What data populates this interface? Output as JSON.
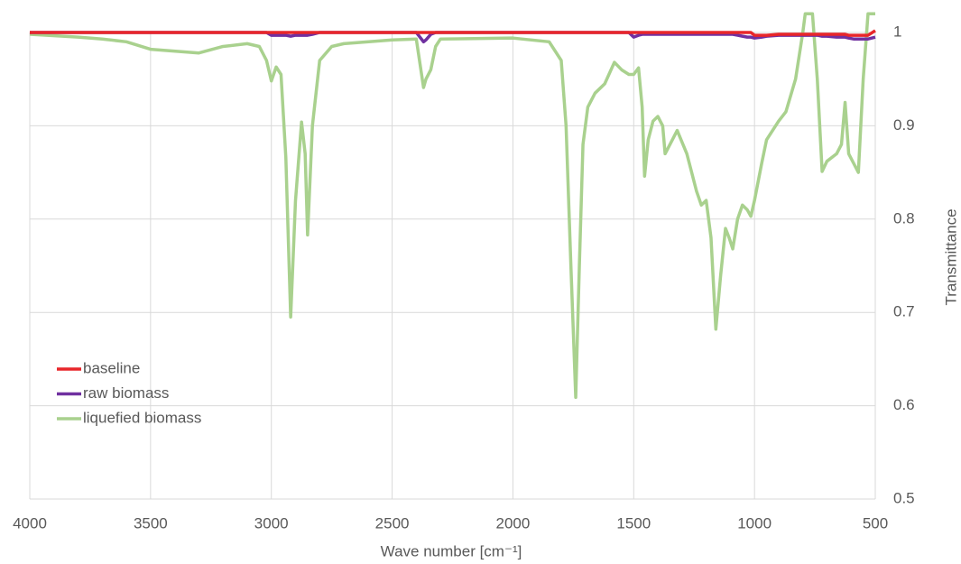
{
  "chart_data": {
    "type": "line",
    "x_label": "Wave number [cm⁻¹]",
    "y_label": "Transmittance",
    "x": [
      4000,
      3800,
      3700,
      3600,
      3500,
      3300,
      3200,
      3100,
      3050,
      3020,
      3000,
      2980,
      2960,
      2940,
      2920,
      2900,
      2875,
      2860,
      2850,
      2830,
      2800,
      2750,
      2700,
      2500,
      2400,
      2370,
      2360,
      2340,
      2320,
      2300,
      2000,
      1850,
      1800,
      1780,
      1760,
      1740,
      1725,
      1710,
      1690,
      1660,
      1620,
      1580,
      1550,
      1520,
      1500,
      1480,
      1465,
      1455,
      1440,
      1420,
      1400,
      1380,
      1370,
      1340,
      1320,
      1280,
      1240,
      1220,
      1200,
      1180,
      1160,
      1140,
      1120,
      1105,
      1090,
      1070,
      1050,
      1030,
      1015,
      1000,
      970,
      950,
      900,
      870,
      830,
      800,
      790,
      760,
      740,
      720,
      700,
      660,
      640,
      625,
      610,
      590,
      570,
      550,
      530,
      500
    ],
    "series": [
      {
        "name": "baseline",
        "color": "#e8262a",
        "values": [
          1,
          1,
          1,
          1,
          1,
          1,
          1,
          1,
          1,
          1,
          1,
          1,
          1,
          1,
          1,
          1,
          1,
          1,
          1,
          1,
          1,
          1,
          1,
          1,
          1,
          1,
          1,
          1,
          1,
          1,
          1,
          1,
          1,
          1,
          1,
          1,
          1,
          1,
          1,
          1,
          1,
          1,
          1,
          1,
          1,
          1,
          1,
          1,
          1,
          1,
          1,
          1,
          1,
          1,
          1,
          1,
          1,
          1,
          1,
          1,
          1,
          1,
          1,
          1,
          1,
          1,
          1,
          1,
          1,
          0.997,
          0.997,
          0.997,
          0.998,
          0.998,
          0.998,
          0.998,
          0.998,
          0.998,
          0.998,
          0.998,
          0.998,
          0.998,
          0.998,
          0.998,
          0.997,
          0.997,
          0.997,
          0.997,
          0.997,
          1.002
        ]
      },
      {
        "name": "raw biomass",
        "color": "#7030a0",
        "values": [
          1,
          1,
          1,
          1,
          1,
          1,
          1,
          1,
          1,
          1,
          0.997,
          0.997,
          0.997,
          0.997,
          0.996,
          0.997,
          0.997,
          0.997,
          0.997,
          0.998,
          1,
          1,
          1,
          1,
          1,
          0.99,
          0.992,
          0.998,
          1,
          1,
          1,
          1,
          1,
          1,
          1,
          1,
          1,
          1,
          1,
          1,
          1,
          1,
          1,
          1,
          0.995,
          0.997,
          0.998,
          0.998,
          0.998,
          0.998,
          0.998,
          0.998,
          0.998,
          0.998,
          0.998,
          0.998,
          0.998,
          0.998,
          0.998,
          0.998,
          0.998,
          0.998,
          0.998,
          0.998,
          0.998,
          0.997,
          0.996,
          0.995,
          0.995,
          0.994,
          0.995,
          0.996,
          0.997,
          0.997,
          0.997,
          0.997,
          0.997,
          0.997,
          0.997,
          0.996,
          0.996,
          0.995,
          0.995,
          0.995,
          0.994,
          0.993,
          0.993,
          0.993,
          0.993,
          0.995
        ]
      },
      {
        "name": "liquefied biomass",
        "color": "#a9d18e",
        "values": [
          0.998,
          0.995,
          0.993,
          0.99,
          0.982,
          0.978,
          0.985,
          0.988,
          0.985,
          0.97,
          0.948,
          0.963,
          0.955,
          0.866,
          0.695,
          0.82,
          0.904,
          0.87,
          0.783,
          0.9,
          0.97,
          0.985,
          0.988,
          0.992,
          0.993,
          0.941,
          0.95,
          0.96,
          0.985,
          0.993,
          0.994,
          0.99,
          0.97,
          0.9,
          0.75,
          0.609,
          0.75,
          0.88,
          0.92,
          0.935,
          0.945,
          0.968,
          0.96,
          0.955,
          0.955,
          0.962,
          0.92,
          0.846,
          0.885,
          0.905,
          0.91,
          0.9,
          0.87,
          0.885,
          0.895,
          0.87,
          0.83,
          0.815,
          0.82,
          0.78,
          0.682,
          0.74,
          0.79,
          0.78,
          0.768,
          0.8,
          0.815,
          0.81,
          0.803,
          0.82,
          0.86,
          0.885,
          0.905,
          0.915,
          0.95,
          1.0,
          1.02,
          1.02,
          0.95,
          0.851,
          0.862,
          0.87,
          0.88,
          0.925,
          0.87,
          0.86,
          0.85,
          0.95,
          1.02,
          1.02
        ]
      }
    ],
    "xlim": [
      4000,
      500
    ],
    "xticks": [
      4000,
      3500,
      3000,
      2500,
      2000,
      1500,
      1000,
      500
    ],
    "ylim": [
      0.5,
      1.02
    ],
    "yticks": [
      0.5,
      0.6,
      0.7,
      0.8,
      0.9,
      1
    ],
    "y_axis_side": "right",
    "grid": true,
    "legend": "lower left"
  }
}
